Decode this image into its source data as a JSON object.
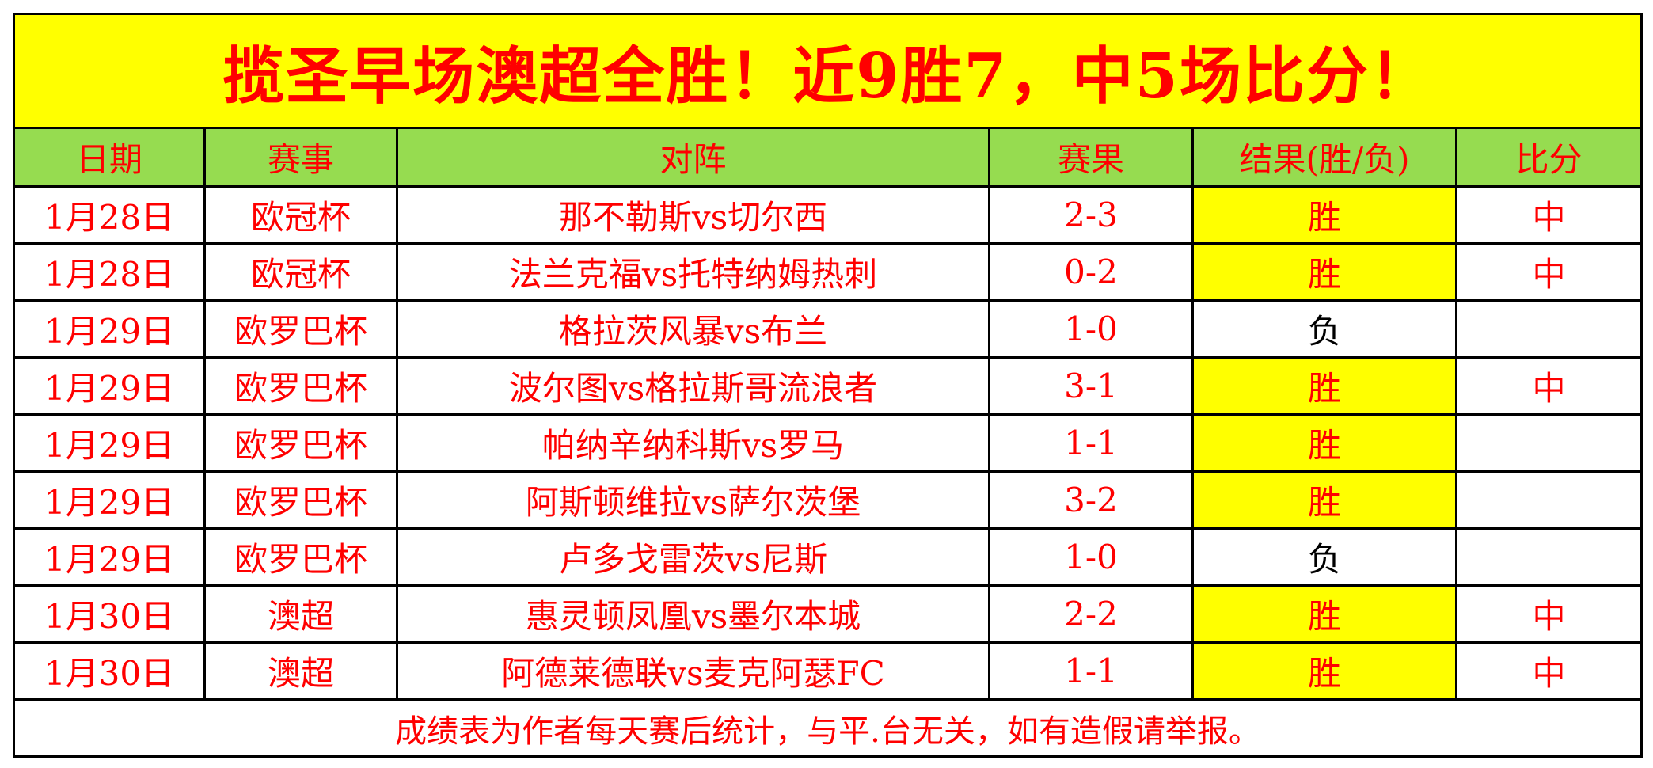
{
  "title": "揽圣早场澳超全胜！近9胜7，中5场比分！",
  "headers": [
    "日期",
    "赛事",
    "对阵",
    "赛果",
    "结果(胜/负)",
    "比分"
  ],
  "rows": [
    {
      "date": "1月28日",
      "league": "欧冠杯",
      "match": "那不勒斯vs切尔西",
      "score": "2-3",
      "result": "胜",
      "hit": "中"
    },
    {
      "date": "1月28日",
      "league": "欧冠杯",
      "match": "法兰克福vs托特纳姆热刺",
      "score": "0-2",
      "result": "胜",
      "hit": "中"
    },
    {
      "date": "1月29日",
      "league": "欧罗巴杯",
      "match": "格拉茨风暴vs布兰",
      "score": "1-0",
      "result": "负",
      "hit": ""
    },
    {
      "date": "1月29日",
      "league": "欧罗巴杯",
      "match": "波尔图vs格拉斯哥流浪者",
      "score": "3-1",
      "result": "胜",
      "hit": "中"
    },
    {
      "date": "1月29日",
      "league": "欧罗巴杯",
      "match": "帕纳辛纳科斯vs罗马",
      "score": "1-1",
      "result": "胜",
      "hit": ""
    },
    {
      "date": "1月29日",
      "league": "欧罗巴杯",
      "match": "阿斯顿维拉vs萨尔茨堡",
      "score": "3-2",
      "result": "胜",
      "hit": ""
    },
    {
      "date": "1月29日",
      "league": "欧罗巴杯",
      "match": "卢多戈雷茨vs尼斯",
      "score": "1-0",
      "result": "负",
      "hit": ""
    },
    {
      "date": "1月30日",
      "league": "澳超",
      "match": "惠灵顿凤凰vs墨尔本城",
      "score": "2-2",
      "result": "胜",
      "hit": "中"
    },
    {
      "date": "1月30日",
      "league": "澳超",
      "match": "阿德莱德联vs麦克阿瑟FC",
      "score": "1-1",
      "result": "胜",
      "hit": "中"
    }
  ],
  "footer": "成绩表为作者每天赛后统计，与平.台无关，如有造假请举报。",
  "colors": {
    "title_bg": "#ffff00",
    "header_bg": "#96dc50",
    "text": "#ff0000",
    "win_bg": "#ffff00",
    "lose_text": "#000000"
  }
}
